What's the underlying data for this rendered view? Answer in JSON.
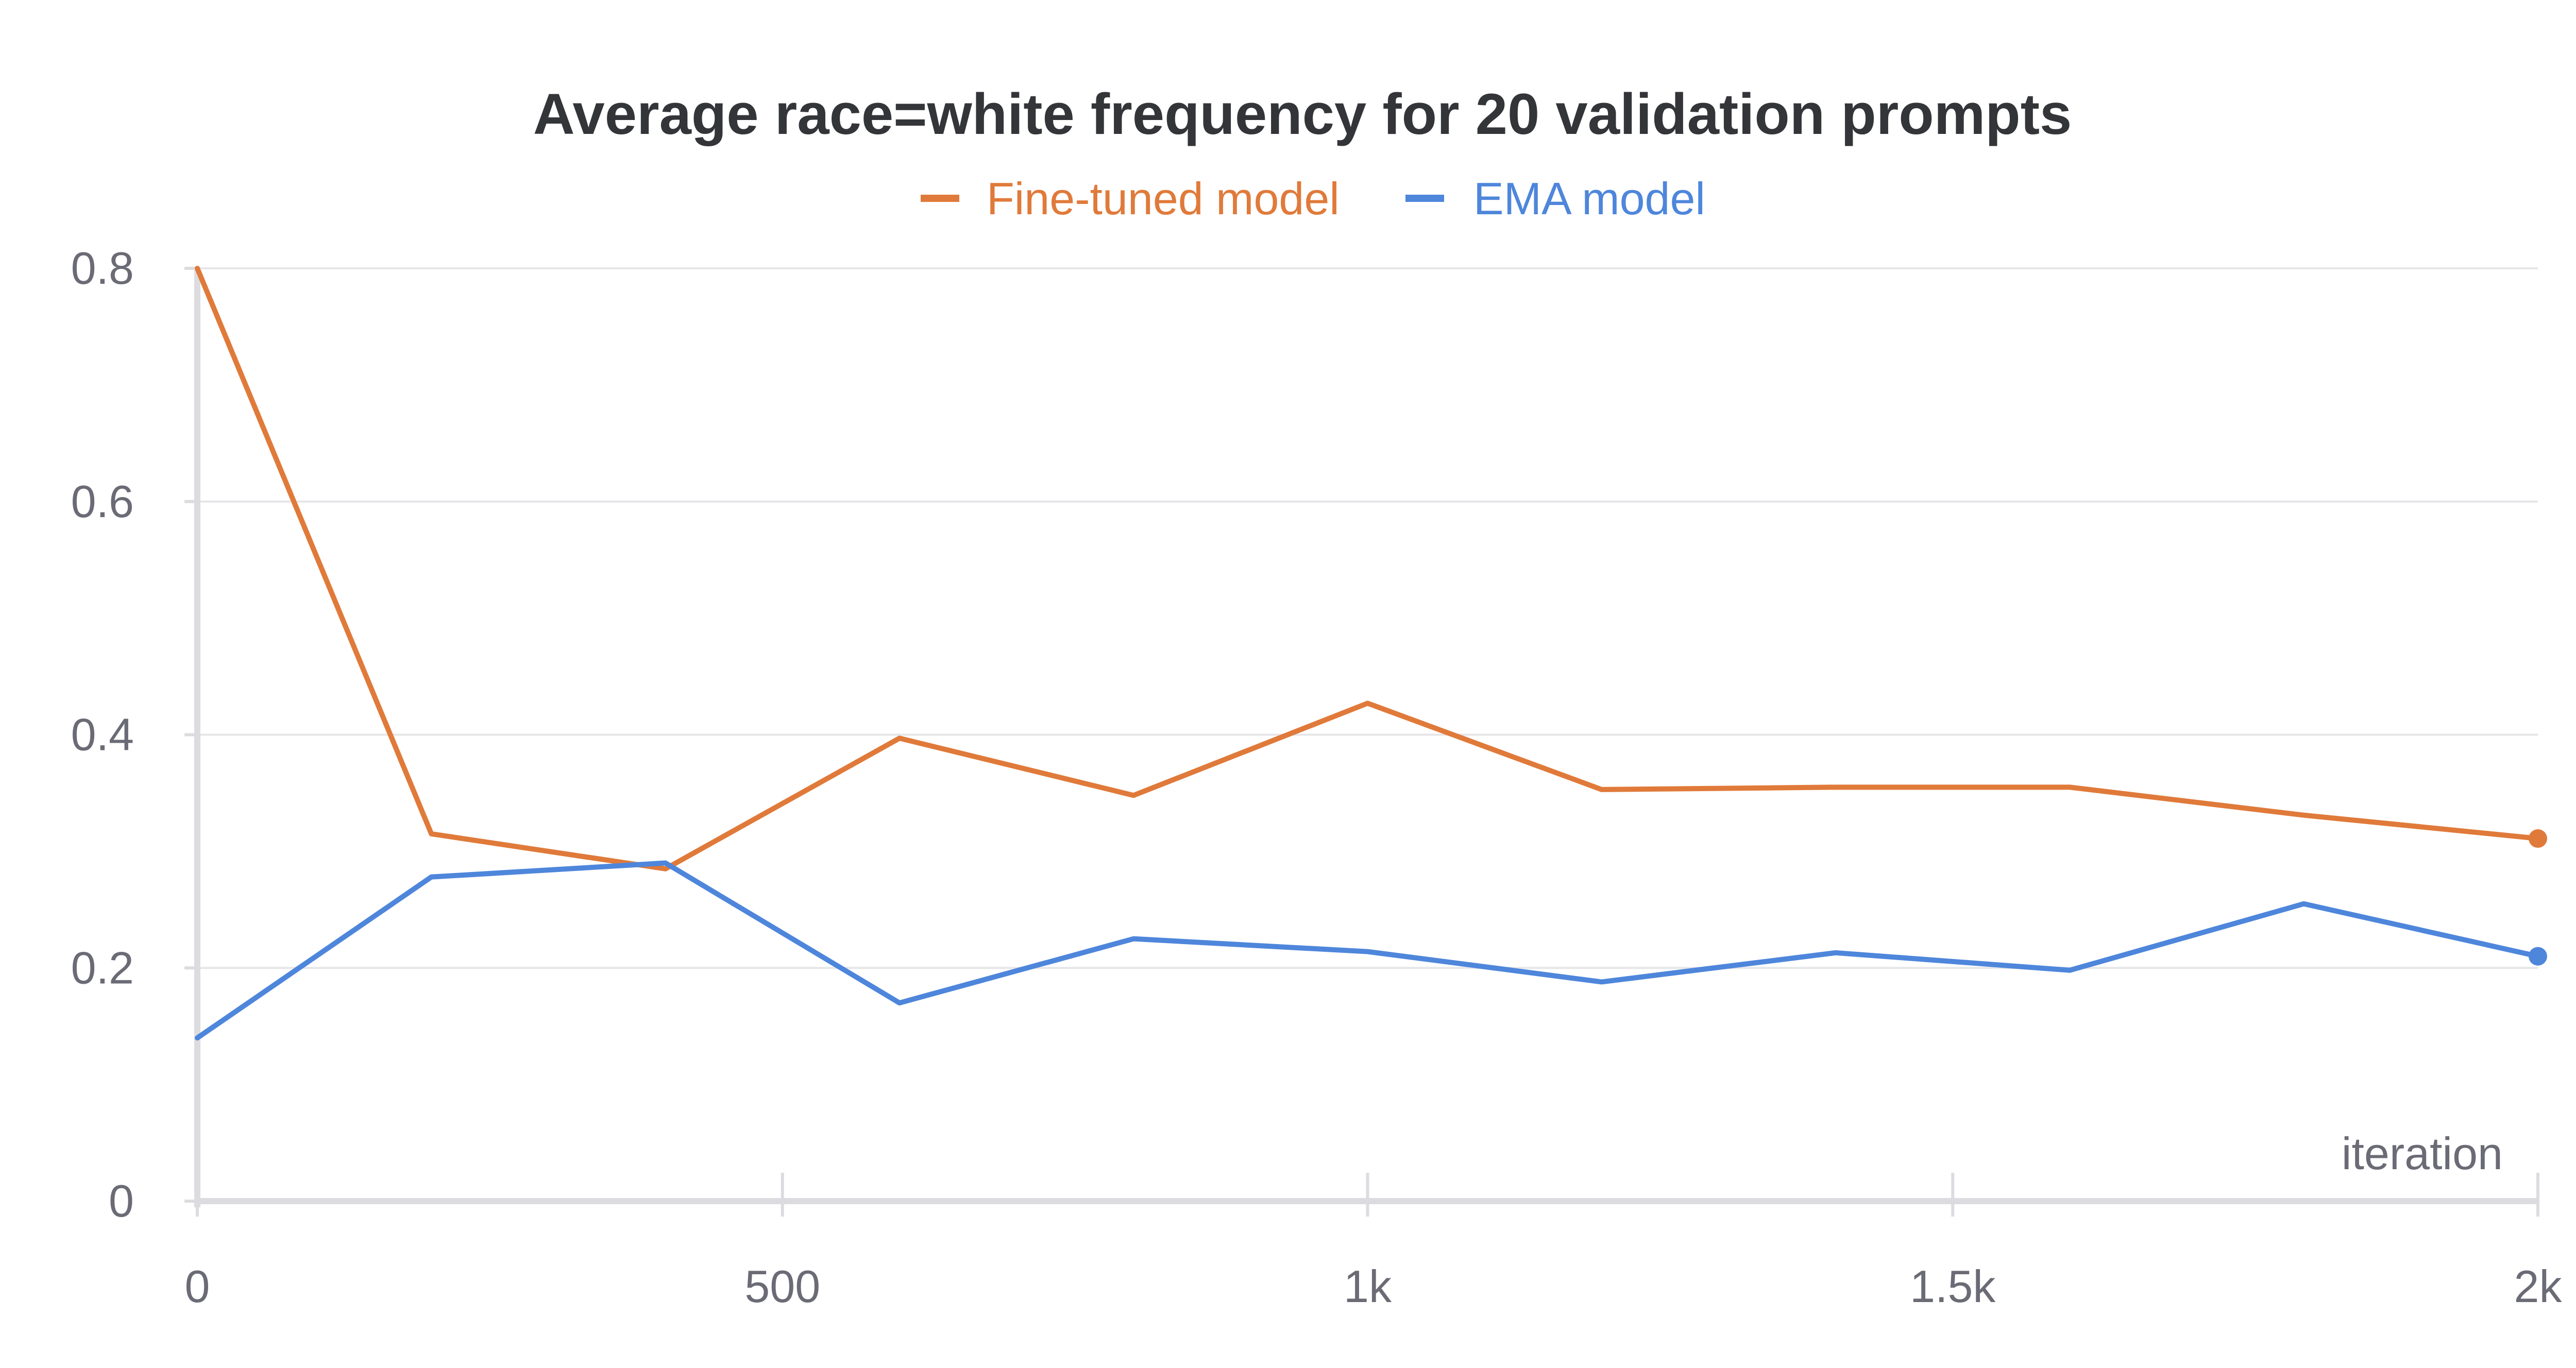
{
  "chart_data": {
    "type": "line",
    "title": "Average race=white frequency for 20 validation prompts",
    "xlabel": "iteration",
    "ylabel": "",
    "xlim": [
      0,
      2000
    ],
    "ylim": [
      0,
      0.8
    ],
    "x_ticks": [
      {
        "value": 0,
        "label": "0"
      },
      {
        "value": 500,
        "label": "500"
      },
      {
        "value": 1000,
        "label": "1k"
      },
      {
        "value": 1500,
        "label": "1.5k"
      },
      {
        "value": 2000,
        "label": "2k"
      }
    ],
    "y_ticks": [
      {
        "value": 0,
        "label": "0"
      },
      {
        "value": 0.2,
        "label": "0.2"
      },
      {
        "value": 0.4,
        "label": "0.4"
      },
      {
        "value": 0.6,
        "label": "0.6"
      },
      {
        "value": 0.8,
        "label": "0.8"
      }
    ],
    "grid": true,
    "legend_position": "top-center",
    "x": [
      0,
      200,
      400,
      600,
      800,
      1000,
      1200,
      1400,
      1600,
      1800,
      2000
    ],
    "series": [
      {
        "name": "Fine-tuned model",
        "color": "#e07a3a",
        "values": [
          0.8,
          0.315,
          0.285,
          0.397,
          0.348,
          0.427,
          0.353,
          0.355,
          0.355,
          0.331,
          0.311
        ]
      },
      {
        "name": "EMA model",
        "color": "#4e86db",
        "values": [
          0.14,
          0.278,
          0.29,
          0.17,
          0.225,
          0.214,
          0.188,
          0.213,
          0.198,
          0.255,
          0.21
        ]
      }
    ]
  }
}
